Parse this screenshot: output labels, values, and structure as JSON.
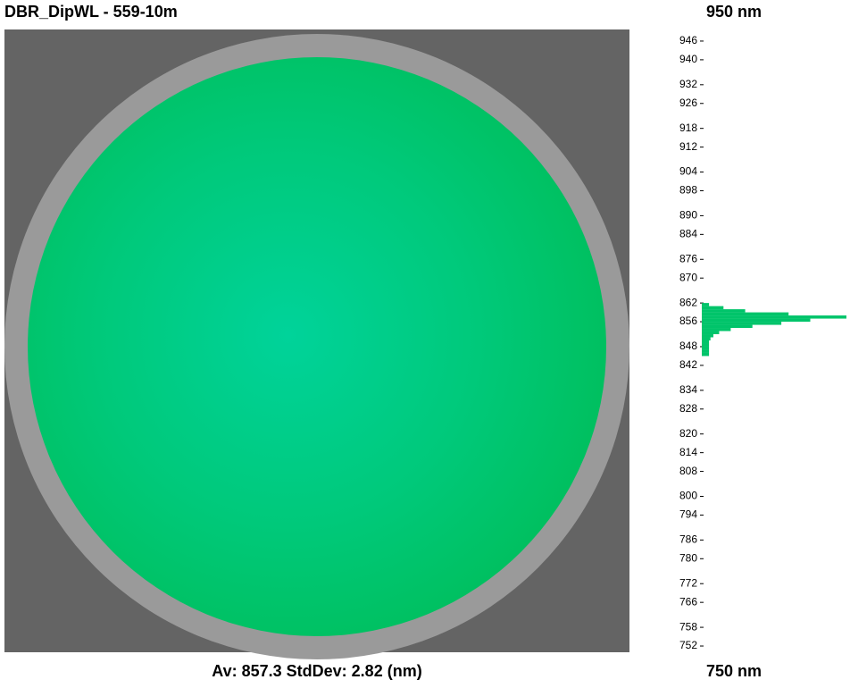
{
  "title": "DBR_DipWL - 559-10m",
  "scale": {
    "top_label": "950 nm",
    "bottom_label": "750 nm"
  },
  "stats": "Av: 857.3 StdDev: 2.82 (nm)",
  "histogram": {
    "ylim": [
      750,
      950
    ],
    "yticks": [
      946,
      940,
      932,
      926,
      918,
      912,
      904,
      898,
      890,
      884,
      876,
      870,
      862,
      856,
      848,
      842,
      834,
      828,
      820,
      814,
      808,
      800,
      794,
      786,
      780,
      772,
      766,
      758,
      752
    ],
    "bins": [
      845,
      846,
      847,
      848,
      849,
      850,
      851,
      852,
      853,
      854,
      855,
      856,
      857,
      858,
      859,
      860,
      861,
      862
    ],
    "counts": [
      5,
      5,
      5,
      5,
      5,
      6,
      8,
      12,
      20,
      35,
      55,
      75,
      100,
      60,
      30,
      15,
      5
    ],
    "color": "#00c46a"
  }
}
